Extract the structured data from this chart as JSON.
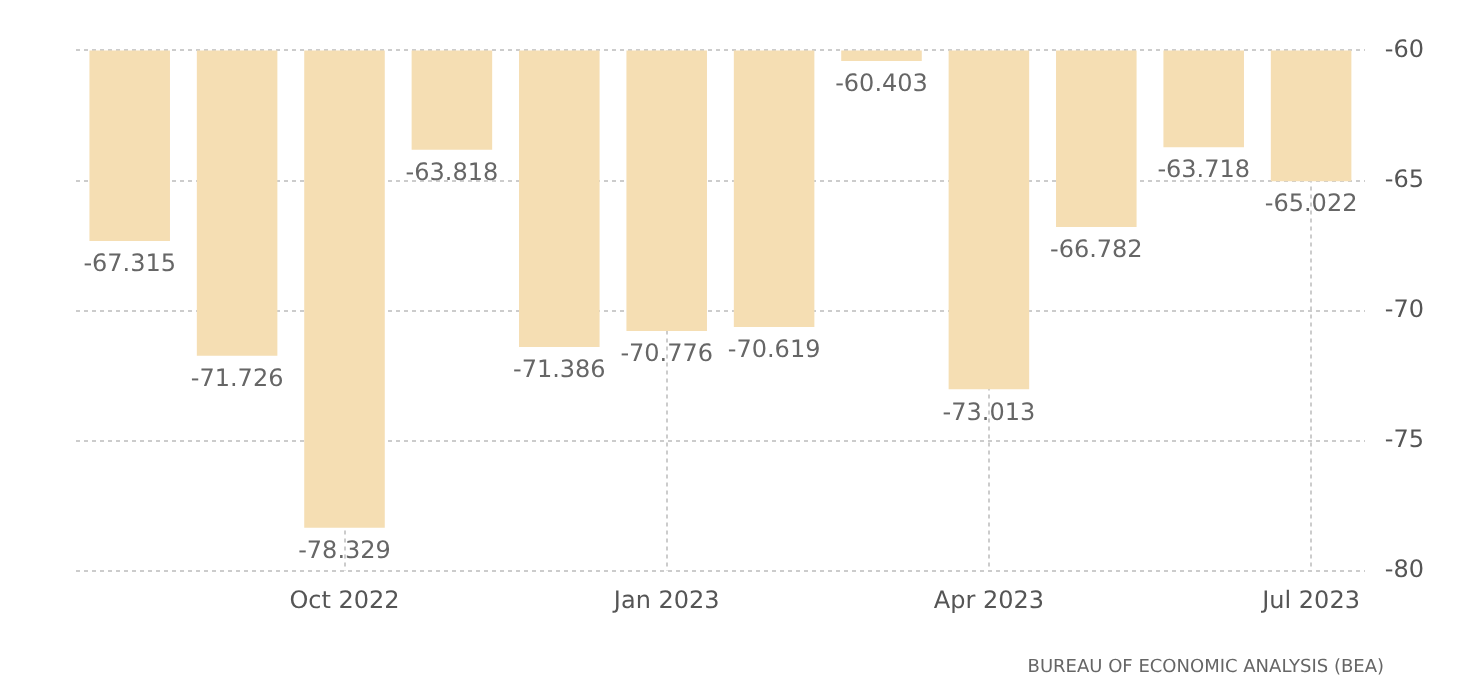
{
  "chart_data": {
    "type": "bar",
    "categories": [
      null,
      null,
      "Oct 2022",
      null,
      null,
      "Jan 2023",
      null,
      null,
      "Apr 2023",
      null,
      null,
      "Jul 2023"
    ],
    "values": [
      -67.315,
      -71.726,
      -78.329,
      -63.818,
      -71.386,
      -70.776,
      -70.619,
      -60.403,
      -73.013,
      -66.782,
      -63.718,
      -65.022
    ],
    "color": "#f5deb3",
    "ylim": [
      -80,
      -60
    ],
    "yticks": [
      -80,
      -75,
      -70,
      -65,
      -60
    ],
    "grid": true,
    "legend": false,
    "data_labels": true,
    "annotations": [
      "BUREAU OF ECONOMIC ANALYSIS (BEA)"
    ]
  }
}
